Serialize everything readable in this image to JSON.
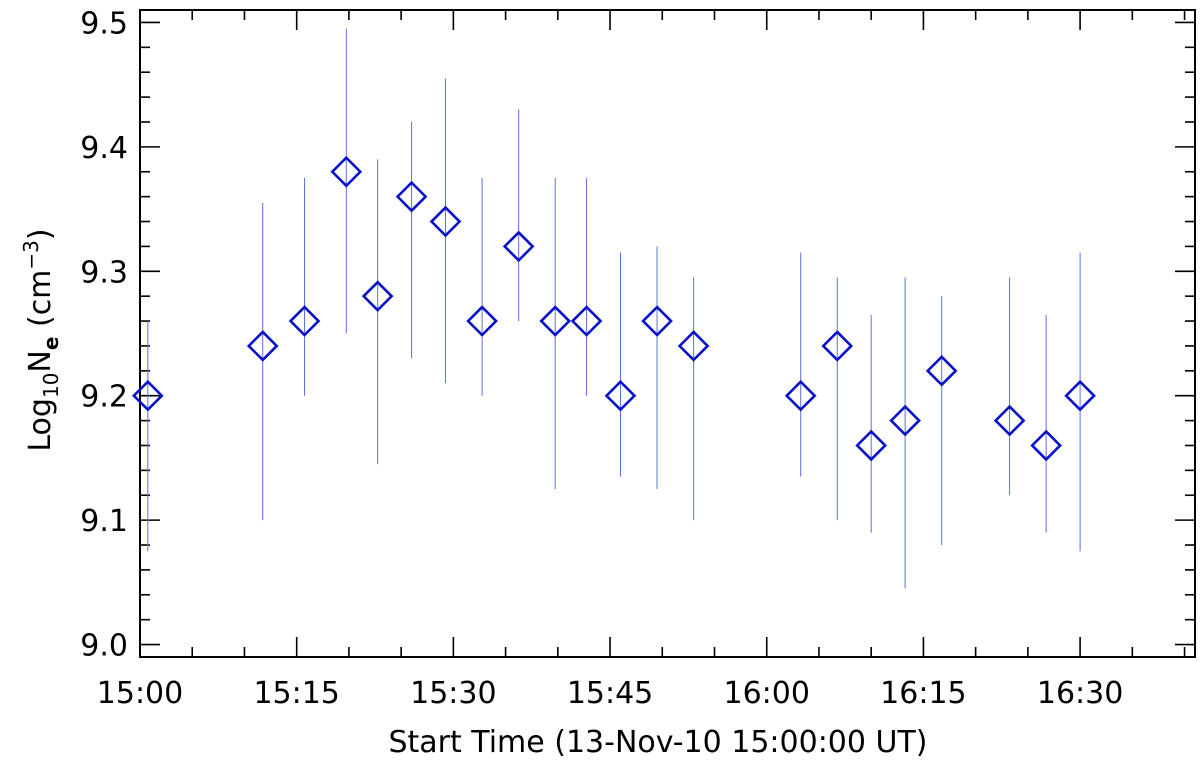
{
  "chart_data": {
    "type": "scatter",
    "xlabel": "Start Time (13-Nov-10 15:00:00 UT)",
    "ylabel_main": "Log",
    "ylabel_sub": "10",
    "ylabel_var": "N",
    "ylabel_var_sub": "e",
    "ylabel_unit_open": " (cm",
    "ylabel_unit_sup": "−3",
    "ylabel_unit_close": ")",
    "xlim": [
      "15:00",
      "16:41"
    ],
    "ylim": [
      8.99,
      9.51
    ],
    "x_ticks": [
      "15:00",
      "15:15",
      "15:30",
      "15:45",
      "16:00",
      "16:15",
      "16:30"
    ],
    "y_ticks": [
      "9.0",
      "9.1",
      "9.2",
      "9.3",
      "9.4",
      "9.5"
    ],
    "marker": "diamond",
    "marker_color": "#0a12c8",
    "errorbar_color": "#5d6fe6",
    "points": [
      {
        "x": "15:00:45",
        "y": 9.2,
        "ylow": 9.075,
        "yhigh": 9.26
      },
      {
        "x": "15:11:45",
        "y": 9.24,
        "ylow": 9.1,
        "yhigh": 9.355
      },
      {
        "x": "15:15:45",
        "y": 9.26,
        "ylow": 9.2,
        "yhigh": 9.375
      },
      {
        "x": "15:19:45",
        "y": 9.38,
        "ylow": 9.25,
        "yhigh": 9.495
      },
      {
        "x": "15:22:45",
        "y": 9.28,
        "ylow": 9.145,
        "yhigh": 9.39
      },
      {
        "x": "15:26:00",
        "y": 9.36,
        "ylow": 9.23,
        "yhigh": 9.42
      },
      {
        "x": "15:29:15",
        "y": 9.34,
        "ylow": 9.21,
        "yhigh": 9.455
      },
      {
        "x": "15:32:45",
        "y": 9.26,
        "ylow": 9.2,
        "yhigh": 9.375
      },
      {
        "x": "15:36:15",
        "y": 9.32,
        "ylow": 9.26,
        "yhigh": 9.43
      },
      {
        "x": "15:39:45",
        "y": 9.26,
        "ylow": 9.125,
        "yhigh": 9.375
      },
      {
        "x": "15:42:45",
        "y": 9.26,
        "ylow": 9.2,
        "yhigh": 9.375
      },
      {
        "x": "15:46:00",
        "y": 9.2,
        "ylow": 9.135,
        "yhigh": 9.315
      },
      {
        "x": "15:49:30",
        "y": 9.26,
        "ylow": 9.125,
        "yhigh": 9.32
      },
      {
        "x": "15:53:00",
        "y": 9.24,
        "ylow": 9.1,
        "yhigh": 9.295
      },
      {
        "x": "16:03:15",
        "y": 9.2,
        "ylow": 9.135,
        "yhigh": 9.315
      },
      {
        "x": "16:06:45",
        "y": 9.24,
        "ylow": 9.1,
        "yhigh": 9.295
      },
      {
        "x": "16:10:00",
        "y": 9.16,
        "ylow": 9.09,
        "yhigh": 9.265
      },
      {
        "x": "16:13:15",
        "y": 9.18,
        "ylow": 9.045,
        "yhigh": 9.295
      },
      {
        "x": "16:16:45",
        "y": 9.22,
        "ylow": 9.08,
        "yhigh": 9.28
      },
      {
        "x": "16:23:15",
        "y": 9.18,
        "ylow": 9.12,
        "yhigh": 9.295
      },
      {
        "x": "16:26:45",
        "y": 9.16,
        "ylow": 9.09,
        "yhigh": 9.265
      },
      {
        "x": "16:30:00",
        "y": 9.2,
        "ylow": 9.075,
        "yhigh": 9.315
      }
    ]
  }
}
